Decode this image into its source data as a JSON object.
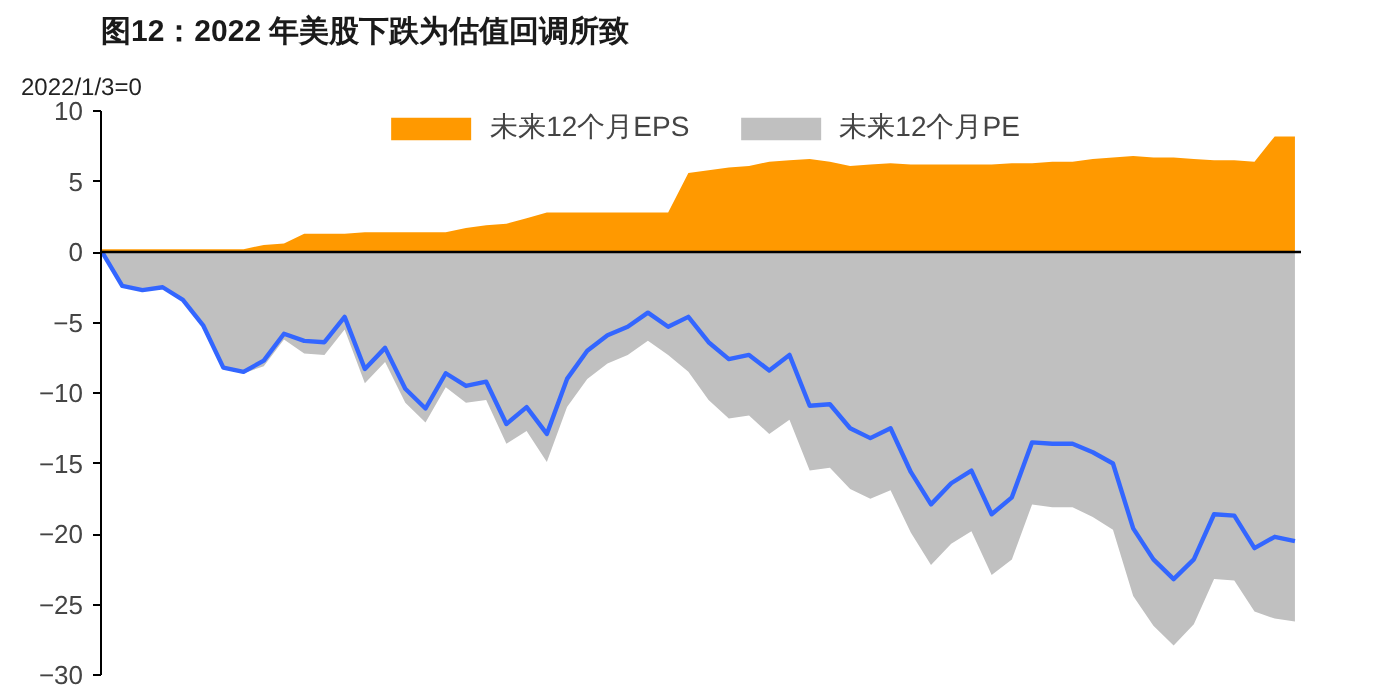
{
  "chart_data": {
    "type": "area",
    "title": "图12：2022 年美股下跌为估值回调所致",
    "annotations": [
      "2022/1/3=0"
    ],
    "categories": [
      null,
      null,
      null,
      null,
      null,
      null,
      null,
      null,
      null,
      null,
      null,
      null,
      null,
      null,
      null,
      null,
      null,
      null,
      null,
      null,
      null,
      null,
      null,
      null,
      null,
      null,
      null,
      null,
      null,
      null,
      null,
      null,
      null,
      null,
      null,
      null,
      null,
      null,
      null,
      null,
      null,
      null,
      null,
      null,
      null,
      null,
      null,
      null,
      null,
      null,
      null,
      null,
      null,
      null,
      null,
      null,
      null,
      null,
      null,
      null
    ],
    "series": [
      {
        "name": "未来12个月EPS",
        "color": "#ff9900",
        "values": [
          0.2,
          0.2,
          0.2,
          0.2,
          0.2,
          0.2,
          0.2,
          0.2,
          0.5,
          0.6,
          1.3,
          1.3,
          1.3,
          1.4,
          1.4,
          1.4,
          1.4,
          1.4,
          1.7,
          1.9,
          2.0,
          2.4,
          2.8,
          2.8,
          2.8,
          2.8,
          2.8,
          2.8,
          2.8,
          5.6,
          5.8,
          6.0,
          6.1,
          6.4,
          6.5,
          6.6,
          6.4,
          6.1,
          6.2,
          6.3,
          6.2,
          6.2,
          6.2,
          6.2,
          6.2,
          6.3,
          6.3,
          6.4,
          6.4,
          6.6,
          6.7,
          6.8,
          6.7,
          6.7,
          6.6,
          6.5,
          6.5,
          6.4,
          8.2,
          8.2
        ]
      },
      {
        "name": "未来12个月PE",
        "color": "#c0c0c0",
        "values": [
          0,
          -2.5,
          -2.8,
          -2.6,
          -3.5,
          -5.3,
          -8.3,
          -8.6,
          -8.1,
          -6.2,
          -7.2,
          -7.3,
          -5.5,
          -9.3,
          -7.8,
          -10.7,
          -12.1,
          -9.6,
          -10.7,
          -10.5,
          -13.6,
          -12.7,
          -14.9,
          -11,
          -9,
          -7.9,
          -7.3,
          -6.3,
          -7.3,
          -8.5,
          -10.5,
          -11.8,
          -11.6,
          -12.9,
          -11.9,
          -15.5,
          -15.3,
          -16.8,
          -17.5,
          -16.9,
          -19.9,
          -22.2,
          -20.7,
          -19.8,
          -22.9,
          -21.8,
          -17.9,
          -18.1,
          -18.1,
          -18.8,
          -19.7,
          -24.4,
          -26.5,
          -27.9,
          -26.4,
          -23.2,
          -23.3,
          -25.5,
          -26,
          -26.2
        ]
      },
      {
        "type": "line",
        "color": "#3366ff",
        "values": [
          0,
          -2.4,
          -2.7,
          -2.5,
          -3.4,
          -5.2,
          -8.2,
          -8.5,
          -7.7,
          -5.8,
          -6.3,
          -6.4,
          -4.6,
          -8.3,
          -6.8,
          -9.7,
          -11.1,
          -8.6,
          -9.5,
          -9.2,
          -12.2,
          -11,
          -12.9,
          -9,
          -7,
          -5.9,
          -5.3,
          -4.3,
          -5.3,
          -4.6,
          -6.4,
          -7.6,
          -7.3,
          -8.4,
          -7.3,
          -10.9,
          -10.8,
          -12.5,
          -13.2,
          -12.5,
          -15.6,
          -17.9,
          -16.4,
          -15.5,
          -18.6,
          -17.4,
          -13.5,
          -13.6,
          -13.6,
          -14.2,
          -15,
          -19.6,
          -21.8,
          -23.2,
          -21.8,
          -18.6,
          -18.7,
          -21,
          -20.2,
          -20.5
        ]
      }
    ],
    "ylim": [
      -30,
      10
    ],
    "yticks": [
      -30,
      -25,
      -20,
      -15,
      -10,
      -5,
      0,
      5,
      10
    ],
    "legend": "top",
    "tick_labels": "y",
    "line_style": "solid",
    "marker": "none"
  }
}
